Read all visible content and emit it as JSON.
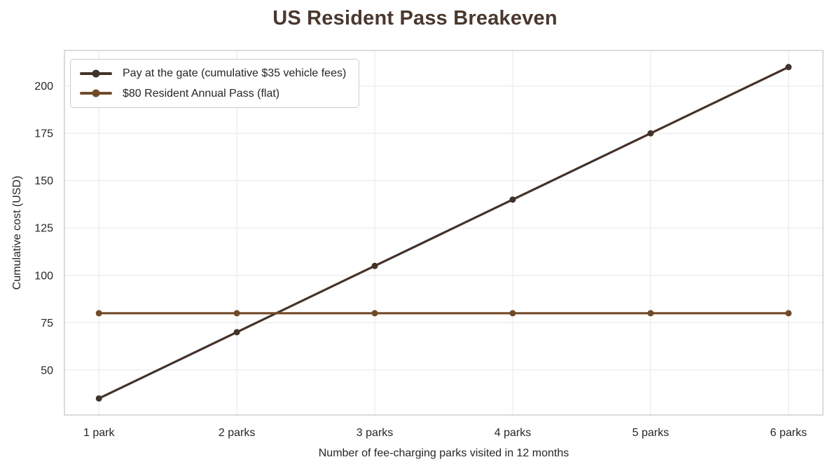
{
  "title": "US Resident Pass Breakeven",
  "colors": {
    "title": "#4a382e",
    "tick_text": "#262626",
    "grid": "#ececec",
    "axis_border": "#cccccc",
    "background": "#ffffff"
  },
  "chart_data": {
    "type": "line",
    "title": "US Resident Pass Breakeven",
    "xlabel": "Number of fee-charging parks visited in 12 months",
    "ylabel": "Cumulative cost (USD)",
    "categories": [
      "1 park",
      "2 parks",
      "3 parks",
      "4 parks",
      "5 parks",
      "6 parks"
    ],
    "x": [
      1,
      2,
      3,
      4,
      5,
      6
    ],
    "series": [
      {
        "name": "Pay at the gate (cumulative $35 vehicle fees)",
        "values": [
          35,
          70,
          105,
          140,
          175,
          210
        ],
        "color": "#42332a"
      },
      {
        "name": "$80 Resident Annual Pass (flat)",
        "values": [
          80,
          80,
          80,
          80,
          80,
          80
        ],
        "color": "#734a28"
      }
    ],
    "xlim": [
      0.75,
      6.25
    ],
    "ylim": [
      26.25,
      218.75
    ],
    "yticks": [
      50,
      75,
      100,
      125,
      150,
      175,
      200
    ],
    "grid": true,
    "legend_position": "upper-left",
    "marker": "circle"
  }
}
